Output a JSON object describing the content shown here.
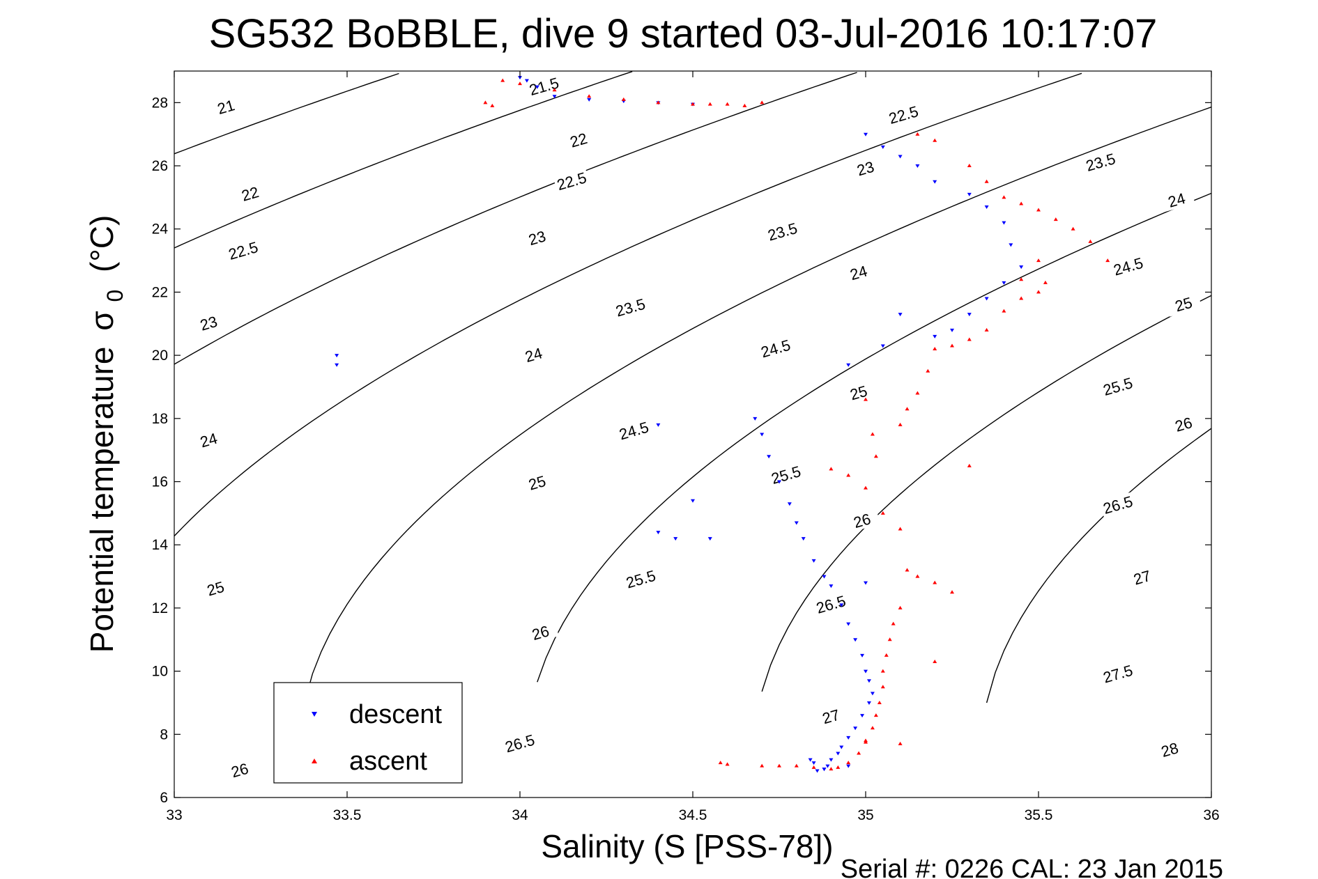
{
  "chart_data": {
    "type": "scatter",
    "title": "SG532 BoBBLE, dive 9 started 03-Jul-2016 10:17:07",
    "xlabel": "Salinity (S [PSS-78])",
    "ylabel": "Potential temperature",
    "ylabel_symbol": "σ",
    "ylabel_subscript": "0",
    "ylabel_unit": "(°C)",
    "xlim": [
      33,
      36
    ],
    "ylim": [
      6,
      29
    ],
    "x_ticks": [
      33,
      33.5,
      34,
      34.5,
      35,
      35.5,
      36
    ],
    "x_tick_labels": [
      "33",
      "33.5",
      "34",
      "34.5",
      "35",
      "35.5",
      "36"
    ],
    "y_ticks": [
      6,
      8,
      10,
      12,
      14,
      16,
      18,
      20,
      22,
      24,
      26,
      28
    ],
    "y_tick_labels": [
      "6",
      "8",
      "10",
      "12",
      "14",
      "16",
      "18",
      "20",
      "22",
      "24",
      "26",
      "28"
    ],
    "grid": false,
    "legend_position": "bottom-left",
    "contour_levels": [
      21,
      21.5,
      22,
      22.5,
      23,
      23.5,
      24,
      24.5,
      25,
      25.5,
      26,
      26.5,
      27,
      27.5,
      28
    ],
    "contour_labels": [
      {
        "text": "21",
        "s": 33.15,
        "t": 27.85
      },
      {
        "text": "21.5",
        "s": 34.07,
        "t": 28.5
      },
      {
        "text": "22",
        "s": 34.17,
        "t": 26.8
      },
      {
        "text": "22.5",
        "s": 35.11,
        "t": 27.6
      },
      {
        "text": "22",
        "s": 33.22,
        "t": 25.1
      },
      {
        "text": "22.5",
        "s": 34.15,
        "t": 25.5
      },
      {
        "text": "23",
        "s": 35.0,
        "t": 25.9
      },
      {
        "text": "23.5",
        "s": 35.68,
        "t": 26.1
      },
      {
        "text": "22.5",
        "s": 33.2,
        "t": 23.3
      },
      {
        "text": "23",
        "s": 34.05,
        "t": 23.7
      },
      {
        "text": "23.5",
        "s": 34.76,
        "t": 23.9
      },
      {
        "text": "24",
        "s": 35.9,
        "t": 24.9
      },
      {
        "text": "23",
        "s": 33.1,
        "t": 21.0
      },
      {
        "text": "23.5",
        "s": 34.32,
        "t": 21.5
      },
      {
        "text": "24",
        "s": 34.98,
        "t": 22.6
      },
      {
        "text": "24.5",
        "s": 35.76,
        "t": 22.8
      },
      {
        "text": "24",
        "s": 34.04,
        "t": 20.0
      },
      {
        "text": "24.5",
        "s": 34.74,
        "t": 20.2
      },
      {
        "text": "25",
        "s": 35.92,
        "t": 21.6
      },
      {
        "text": "24",
        "s": 33.1,
        "t": 17.3
      },
      {
        "text": "24.5",
        "s": 34.33,
        "t": 17.6
      },
      {
        "text": "25",
        "s": 34.98,
        "t": 18.8
      },
      {
        "text": "25.5",
        "s": 35.73,
        "t": 19.0
      },
      {
        "text": "25",
        "s": 34.05,
        "t": 15.95
      },
      {
        "text": "25.5",
        "s": 34.77,
        "t": 16.2
      },
      {
        "text": "26",
        "s": 35.92,
        "t": 17.8
      },
      {
        "text": "25",
        "s": 33.12,
        "t": 12.6
      },
      {
        "text": "25.5",
        "s": 34.35,
        "t": 12.9
      },
      {
        "text": "26",
        "s": 34.99,
        "t": 14.75
      },
      {
        "text": "26.5",
        "s": 35.73,
        "t": 15.25
      },
      {
        "text": "26",
        "s": 34.06,
        "t": 11.2
      },
      {
        "text": "26.5",
        "s": 34.9,
        "t": 12.1
      },
      {
        "text": "27",
        "s": 35.8,
        "t": 12.95
      },
      {
        "text": "26",
        "s": 33.19,
        "t": 6.85
      },
      {
        "text": "26.5",
        "s": 34.0,
        "t": 7.7
      },
      {
        "text": "27",
        "s": 34.9,
        "t": 8.55
      },
      {
        "text": "27.5",
        "s": 35.73,
        "t": 9.9
      },
      {
        "text": "28",
        "s": 35.88,
        "t": 7.5
      }
    ],
    "series": [
      {
        "name": "descent",
        "color": "#0000ff",
        "marker": "triangle-down",
        "x": [
          34.0,
          34.02,
          34.05,
          34.1,
          34.2,
          34.3,
          34.4,
          34.5,
          35.0,
          35.05,
          35.1,
          35.15,
          35.2,
          35.3,
          35.35,
          35.4,
          35.42,
          35.45,
          35.4,
          35.35,
          35.3,
          35.25,
          35.2,
          35.1,
          35.05,
          34.95,
          33.47,
          33.47,
          34.4,
          34.5,
          34.55,
          34.68,
          34.7,
          34.72,
          34.75,
          34.78,
          34.8,
          34.82,
          34.85,
          34.88,
          34.9,
          34.93,
          34.95,
          34.97,
          34.99,
          35.0,
          35.01,
          35.02,
          35.01,
          34.99,
          34.97,
          34.95,
          34.93,
          34.92,
          34.9,
          34.89,
          34.88,
          34.86,
          34.85,
          34.84,
          34.88,
          34.95,
          35.0,
          34.4,
          34.45
        ],
        "y": [
          28.8,
          28.7,
          28.5,
          28.2,
          28.1,
          28.05,
          28.0,
          27.95,
          27.0,
          26.6,
          26.3,
          26.0,
          25.5,
          25.1,
          24.7,
          24.2,
          23.5,
          22.8,
          22.3,
          21.8,
          21.3,
          20.8,
          20.6,
          21.3,
          20.3,
          19.7,
          20.0,
          19.7,
          17.8,
          15.4,
          14.2,
          18.0,
          17.5,
          16.8,
          16.0,
          15.3,
          14.7,
          14.2,
          13.5,
          13.0,
          12.7,
          12.1,
          11.5,
          11.0,
          10.5,
          10.0,
          9.7,
          9.3,
          9.0,
          8.6,
          8.2,
          7.9,
          7.6,
          7.4,
          7.2,
          7.0,
          6.9,
          6.85,
          7.1,
          7.2,
          6.9,
          7.0,
          12.8,
          14.4,
          14.2
        ]
      },
      {
        "name": "ascent",
        "color": "#ff0000",
        "marker": "triangle-up",
        "x": [
          33.95,
          34.0,
          34.1,
          34.2,
          34.3,
          34.4,
          34.5,
          34.55,
          34.6,
          34.65,
          34.7,
          33.9,
          33.92,
          35.15,
          35.2,
          35.3,
          35.35,
          35.4,
          35.45,
          35.5,
          35.55,
          35.6,
          35.65,
          35.7,
          35.5,
          35.45,
          35.5,
          35.52,
          35.45,
          35.4,
          35.35,
          35.3,
          35.25,
          35.2,
          35.18,
          35.15,
          35.12,
          35.1,
          35.0,
          35.02,
          35.03,
          34.9,
          34.95,
          35.0,
          35.05,
          35.1,
          35.12,
          35.15,
          35.2,
          35.25,
          35.1,
          35.08,
          35.07,
          35.06,
          35.05,
          35.05,
          35.04,
          35.03,
          35.02,
          35.0,
          34.98,
          34.95,
          34.92,
          34.9,
          34.85,
          34.8,
          34.75,
          34.7,
          34.6,
          34.58,
          35.0,
          35.1,
          35.2,
          35.3
        ],
        "y": [
          28.7,
          28.6,
          28.4,
          28.2,
          28.1,
          28.0,
          27.95,
          27.95,
          27.95,
          27.9,
          28.0,
          28.0,
          27.9,
          27.0,
          26.8,
          26.0,
          25.5,
          25.0,
          24.8,
          24.6,
          24.3,
          24.0,
          23.6,
          23.0,
          23.0,
          22.4,
          22.0,
          22.3,
          21.8,
          21.4,
          20.8,
          20.5,
          20.3,
          20.2,
          19.5,
          18.8,
          18.3,
          17.8,
          18.6,
          17.5,
          16.8,
          16.4,
          16.2,
          15.8,
          15.0,
          14.5,
          13.2,
          13.0,
          12.8,
          12.5,
          12.0,
          11.5,
          11.0,
          10.5,
          10.0,
          9.5,
          9.0,
          8.6,
          8.2,
          7.8,
          7.4,
          7.1,
          6.95,
          6.9,
          6.95,
          7.0,
          7.0,
          7.0,
          7.05,
          7.1,
          7.75,
          7.7,
          10.3,
          16.5
        ]
      }
    ]
  },
  "footer": "Serial #: 0226  CAL: 23 Jan 2015"
}
